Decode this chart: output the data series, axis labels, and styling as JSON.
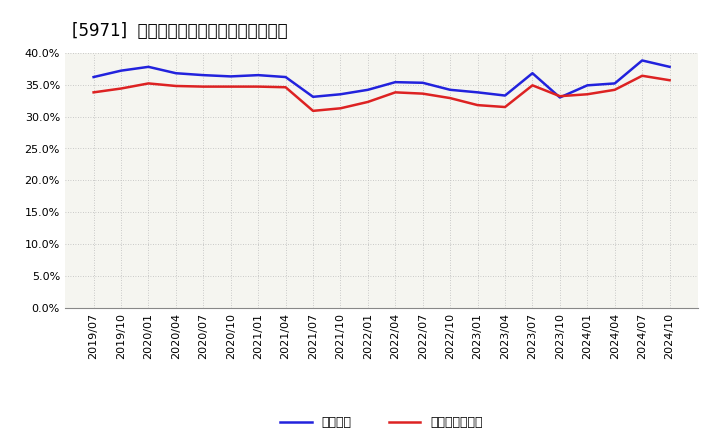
{
  "title": "[5971]  固定比率、固定長期適合率の推移",
  "xlabel_labels": [
    "2019/07",
    "2019/10",
    "2020/01",
    "2020/04",
    "2020/07",
    "2020/10",
    "2021/01",
    "2021/04",
    "2021/07",
    "2021/10",
    "2022/01",
    "2022/04",
    "2022/07",
    "2022/10",
    "2023/01",
    "2023/04",
    "2023/07",
    "2023/10",
    "2024/01",
    "2024/04",
    "2024/07",
    "2024/10"
  ],
  "fixed_ratio": [
    36.2,
    37.2,
    37.8,
    36.8,
    36.5,
    36.3,
    36.5,
    36.2,
    33.1,
    33.5,
    34.2,
    35.4,
    35.3,
    34.2,
    33.8,
    33.3,
    36.8,
    33.0,
    34.9,
    35.2,
    38.8,
    37.8
  ],
  "fixed_long_term_ratio": [
    33.8,
    34.4,
    35.2,
    34.8,
    34.7,
    34.7,
    34.7,
    34.6,
    30.9,
    31.3,
    32.3,
    33.8,
    33.6,
    32.9,
    31.8,
    31.5,
    34.9,
    33.2,
    33.5,
    34.2,
    36.4,
    35.7
  ],
  "line1_color": "#2222dd",
  "line2_color": "#dd2222",
  "line1_label": "固定比率",
  "line2_label": "固定長期適合率",
  "ylim": [
    0,
    40
  ],
  "yticks": [
    0.0,
    5.0,
    10.0,
    15.0,
    20.0,
    25.0,
    30.0,
    35.0,
    40.0
  ],
  "bg_color": "#ffffff",
  "plot_bg_color": "#f5f5f0",
  "grid_color": "#bbbbbb",
  "title_fontsize": 12,
  "tick_fontsize": 8,
  "legend_fontsize": 9
}
